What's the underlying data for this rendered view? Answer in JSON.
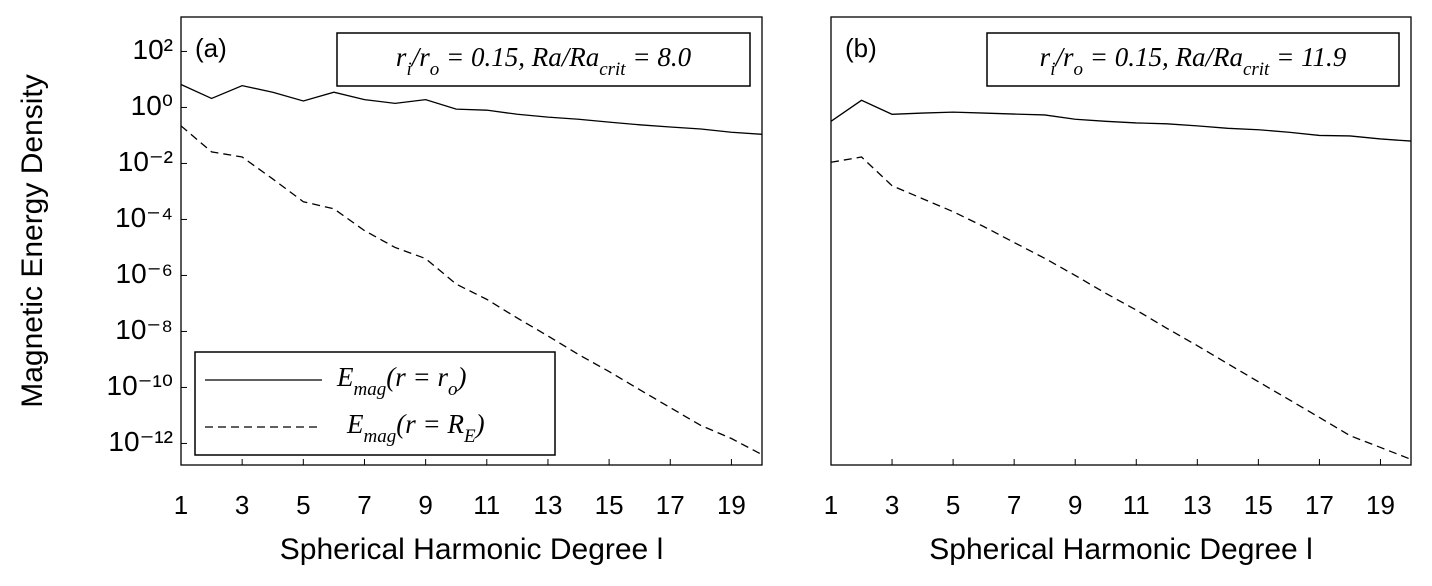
{
  "chart_data": [
    {
      "type": "line",
      "label": "(a)",
      "annotation": [
        "r",
        "i",
        "/r",
        "o",
        " = 0.15, Ra/Ra",
        "crit",
        " = 8.0"
      ],
      "xlabel": "Spherical Harmonic Degree l",
      "ylabel": "Magnetic Energy Density",
      "x": [
        1,
        2,
        3,
        4,
        5,
        6,
        7,
        8,
        9,
        10,
        11,
        12,
        13,
        14,
        15,
        16,
        17,
        18,
        19,
        20
      ],
      "xlim": [
        1,
        20
      ],
      "xticks": [
        1,
        3,
        5,
        7,
        9,
        11,
        13,
        15,
        17,
        19
      ],
      "ylim": [
        1.7e-13,
        1700
      ],
      "log_y": true,
      "yticks": [
        {
          "value": 100,
          "label": "10²"
        },
        {
          "value": 1,
          "label": "10⁰"
        },
        {
          "value": 0.01,
          "label": "10⁻²"
        },
        {
          "value": 0.0001,
          "label": "10⁻⁴"
        },
        {
          "value": 1e-06,
          "label": "10⁻⁶"
        },
        {
          "value": 1e-08,
          "label": "10⁻⁸"
        },
        {
          "value": 1e-10,
          "label": "10⁻¹⁰"
        },
        {
          "value": 1e-12,
          "label": "10⁻¹²"
        }
      ],
      "legend": "lower left",
      "series": [
        {
          "name": [
            "E",
            "mag",
            "(r = r",
            "o",
            ")"
          ],
          "color": "#000000",
          "linestyle": "solid",
          "values": [
            6.6,
            2.1,
            6,
            3.5,
            1.7,
            3.5,
            1.9,
            1.4,
            1.9,
            0.87,
            0.8,
            0.57,
            0.45,
            0.38,
            0.3,
            0.24,
            0.2,
            0.17,
            0.13,
            0.11
          ]
        },
        {
          "name": [
            "E",
            "mag",
            "(r = R",
            "E",
            ")"
          ],
          "color": "#000000",
          "linestyle": "dashed",
          "values": [
            0.22,
            0.026,
            0.017,
            0.0028,
            0.00043,
            0.00024,
            4e-05,
            1e-05,
            4e-06,
            4.9e-07,
            1.4e-07,
            3e-08,
            6.9e-09,
            1.5e-09,
            3.7e-10,
            8.3e-11,
            1.9e-11,
            4.4e-12,
            1.5e-12,
            4e-13
          ]
        }
      ]
    },
    {
      "type": "line",
      "label": "(b)",
      "annotation": [
        "r",
        "i",
        "/r",
        "o",
        " = 0.15, Ra/Ra",
        "crit",
        " = 11.9"
      ],
      "xlabel": "Spherical Harmonic Degree l",
      "x": [
        1,
        2,
        3,
        4,
        5,
        6,
        7,
        8,
        9,
        10,
        11,
        12,
        13,
        14,
        15,
        16,
        17,
        18,
        19,
        20
      ],
      "xlim": [
        1,
        20
      ],
      "xticks": [
        1,
        3,
        5,
        7,
        9,
        11,
        13,
        15,
        17,
        19
      ],
      "ylim": [
        1.7e-13,
        1700
      ],
      "log_y": true,
      "series": [
        {
          "color": "#000000",
          "linestyle": "solid",
          "values": [
            0.32,
            1.8,
            0.57,
            0.63,
            0.68,
            0.63,
            0.58,
            0.54,
            0.38,
            0.32,
            0.28,
            0.26,
            0.22,
            0.18,
            0.16,
            0.13,
            0.1,
            0.096,
            0.075,
            0.063
          ]
        },
        {
          "color": "#000000",
          "linestyle": "dashed",
          "values": [
            0.011,
            0.017,
            0.0016,
            0.00055,
            0.00019,
            5.6e-05,
            1.5e-05,
            4.1e-06,
            1e-06,
            2.3e-07,
            5.8e-08,
            1.3e-08,
            3.1e-09,
            7e-10,
            1.6e-10,
            3.7e-11,
            8.5e-12,
            1.9e-12,
            7.2e-13,
            2.7e-13
          ]
        }
      ]
    }
  ]
}
